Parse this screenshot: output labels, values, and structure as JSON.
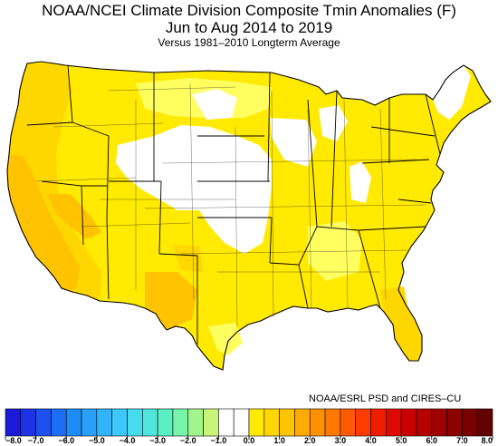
{
  "title": {
    "line1": "NOAA/NCEI Climate Division Composite Tmin Anomalies (F)",
    "line2": "Jun to Aug 2014 to 2019",
    "line3": "Versus 1981–2010 Longterm Average"
  },
  "credit": "NOAA/ESRL PSD and CIRES–CU",
  "colorbar": {
    "bins": [
      {
        "color": "#1a1ad8"
      },
      {
        "color": "#1e32e6"
      },
      {
        "color": "#1e50f0"
      },
      {
        "color": "#1e6ef5"
      },
      {
        "color": "#1e8cf8"
      },
      {
        "color": "#28a0fa"
      },
      {
        "color": "#32b4fa"
      },
      {
        "color": "#3cc8fa"
      },
      {
        "color": "#46dcf0"
      },
      {
        "color": "#50e6dc"
      },
      {
        "color": "#5aefc3"
      },
      {
        "color": "#78f5aa"
      },
      {
        "color": "#a0f58c"
      },
      {
        "color": "#c8f578"
      },
      {
        "color": "#ffffff"
      },
      {
        "color": "#ffffff"
      },
      {
        "color": "#ffea00"
      },
      {
        "color": "#ffd700"
      },
      {
        "color": "#ffc300"
      },
      {
        "color": "#ffaa00"
      },
      {
        "color": "#ff9100"
      },
      {
        "color": "#ff7800"
      },
      {
        "color": "#ff5a00"
      },
      {
        "color": "#ff3c00"
      },
      {
        "color": "#f01e00"
      },
      {
        "color": "#dc0a00"
      },
      {
        "color": "#c80000"
      },
      {
        "color": "#b40000"
      },
      {
        "color": "#a00000"
      },
      {
        "color": "#8c0000"
      },
      {
        "color": "#780000"
      },
      {
        "color": "#640000"
      }
    ],
    "labels": [
      "−8.0",
      "−7.0",
      "−6.0",
      "−5.0",
      "−4.0",
      "−3.0",
      "−2.0",
      "−1.0",
      "0.0",
      "1.0",
      "2.0",
      "3.0",
      "4.0",
      "5.0",
      "6.0",
      "7.0",
      "8.0"
    ]
  },
  "map_colors": {
    "pale_yellow": "#ffff60",
    "yellow": "#ffea00",
    "gold": "#ffd700",
    "amber": "#ffc300",
    "orange": "#ffaa00",
    "white": "#ffffff"
  }
}
